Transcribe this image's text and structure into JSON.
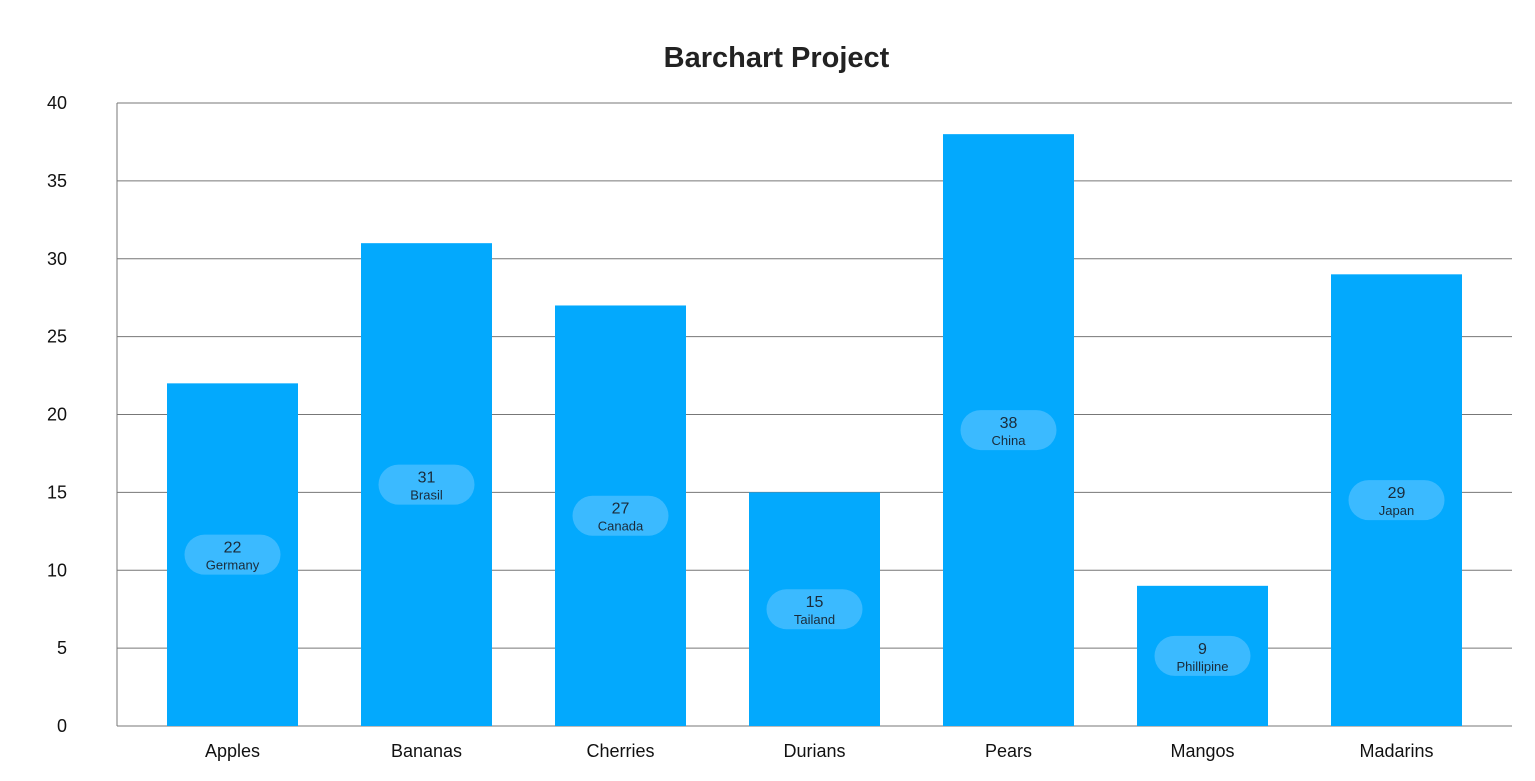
{
  "chart_data": {
    "type": "bar",
    "title": "Barchart Project",
    "xlabel": "",
    "ylabel": "",
    "ylim": [
      0,
      40
    ],
    "yticks": [
      0,
      5,
      10,
      15,
      20,
      25,
      30,
      35,
      40
    ],
    "grid": true,
    "categories": [
      "Apples",
      "Bananas",
      "Cherries",
      "Durians",
      "Pears",
      "Mangos",
      "Madarins"
    ],
    "values": [
      22,
      31,
      27,
      15,
      38,
      9,
      29
    ],
    "countries": [
      "Germany",
      "Brasil",
      "Canada",
      "Tailand",
      "China",
      "Phillipine",
      "Japan"
    ],
    "bar_color": "#03a9fd",
    "label_bubble_color": "#3bbaff",
    "grid_color": "#777777"
  }
}
